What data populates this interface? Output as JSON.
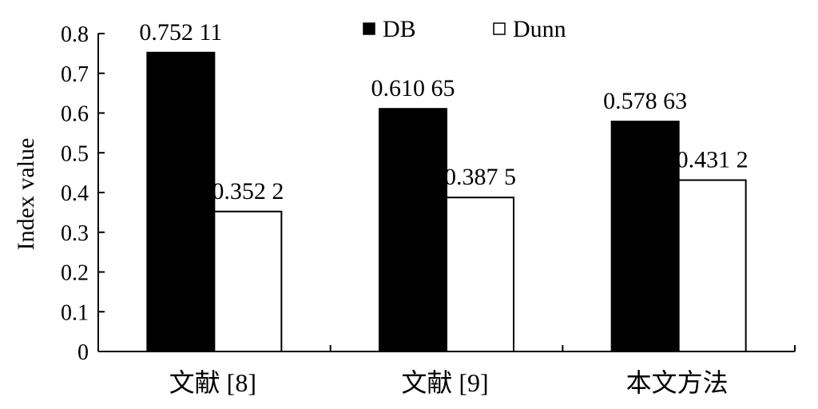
{
  "chart_data": {
    "type": "bar",
    "categories": [
      "文献 [8]",
      "文献 [9]",
      "本文方法"
    ],
    "series": [
      {
        "name": "DB",
        "values": [
          0.75211,
          0.61065,
          0.57863
        ],
        "labels": [
          "0.752 11",
          "0.610 65",
          "0.578 63"
        ],
        "color": "#000000"
      },
      {
        "name": "Dunn",
        "values": [
          0.3522,
          0.3875,
          0.4312
        ],
        "labels": [
          "0.352 2",
          "0.387 5",
          "0.431 2"
        ],
        "color": "#ffffff"
      }
    ],
    "ylabel": "Index value",
    "ylim": [
      0,
      0.8
    ],
    "yticks": [
      0,
      0.1,
      0.2,
      0.3,
      0.4,
      0.5,
      0.6,
      0.7,
      0.8
    ],
    "ytick_labels": [
      "0",
      "0.1",
      "0.2",
      "0.3",
      "0.4",
      "0.5",
      "0.6",
      "0.7",
      "0.8"
    ],
    "legend_position": "top-center",
    "grid": false
  }
}
